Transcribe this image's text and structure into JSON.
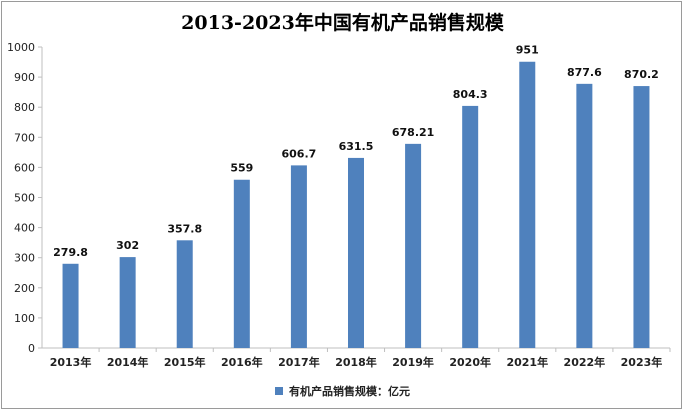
{
  "chart_data": {
    "type": "bar",
    "title": "2013-2023年中国有机产品销售规模",
    "categories": [
      "2013年",
      "2014年",
      "2015年",
      "2016年",
      "2017年",
      "2018年",
      "2019年",
      "2020年",
      "2021年",
      "2022年",
      "2023年"
    ],
    "series": [
      {
        "name": "有机产品销售规模：亿元",
        "values": [
          279.8,
          302,
          357.8,
          559,
          606.7,
          631.5,
          678.21,
          804.3,
          951,
          877.6,
          870.2
        ],
        "labels": [
          "279.8",
          "302",
          "357.8",
          "559",
          "606.7",
          "631.5",
          "678.21",
          "804.3",
          "951",
          "877.6",
          "870.2"
        ]
      }
    ],
    "ylim": [
      0,
      1000
    ],
    "yticks": [
      0,
      100,
      200,
      300,
      400,
      500,
      600,
      700,
      800,
      900,
      1000
    ],
    "grid": false,
    "legend_position": "bottom",
    "colors": {
      "bar": "#4f81bd",
      "axis": "#bfbfbf"
    }
  }
}
